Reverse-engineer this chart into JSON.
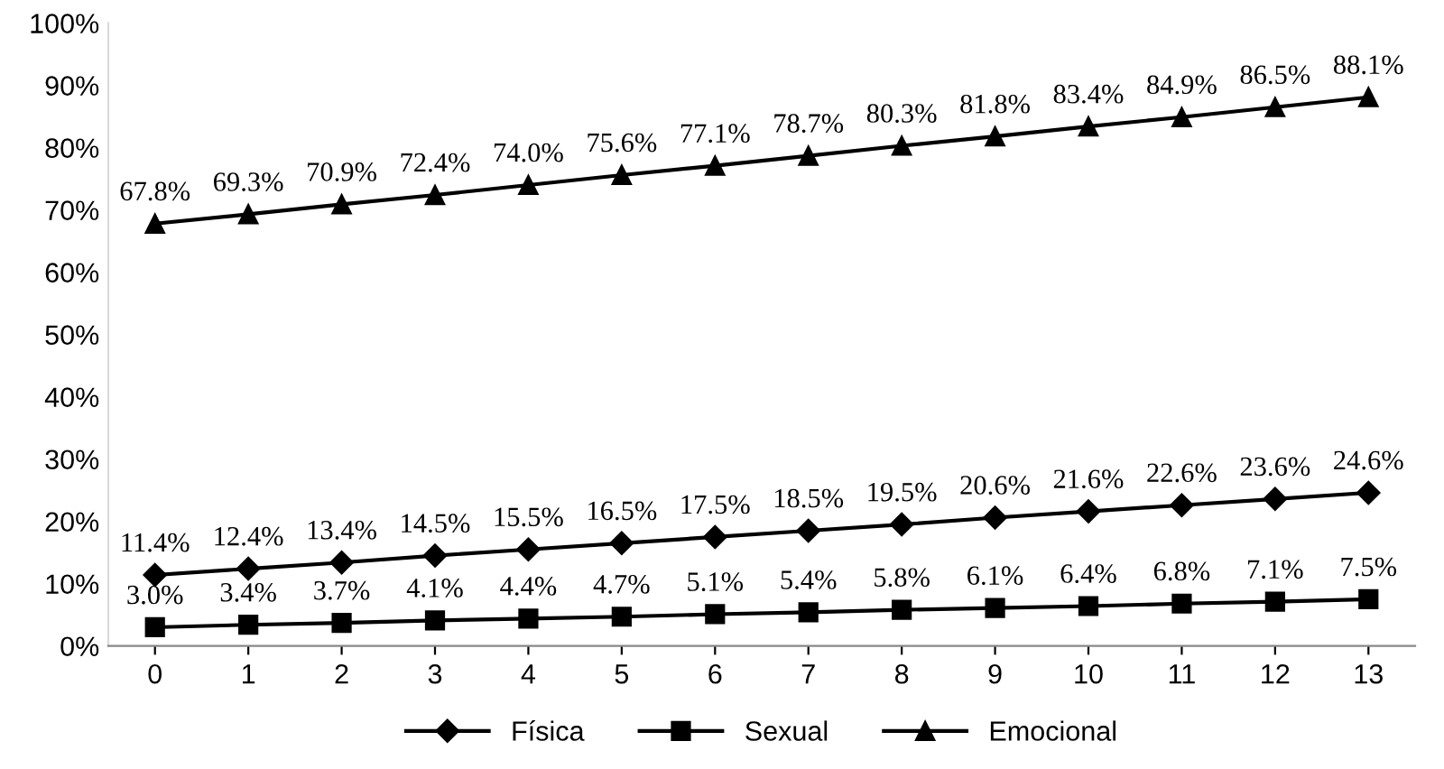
{
  "chart_data": {
    "type": "line",
    "categories": [
      "0",
      "1",
      "2",
      "3",
      "4",
      "5",
      "6",
      "7",
      "8",
      "9",
      "10",
      "11",
      "12",
      "13"
    ],
    "series": [
      {
        "name": "Física",
        "color": "#000000",
        "marker": "diamond",
        "values": [
          11.4,
          12.4,
          13.4,
          14.5,
          15.5,
          16.5,
          17.5,
          18.5,
          19.5,
          20.6,
          21.6,
          22.6,
          23.6,
          24.6
        ],
        "value_labels": [
          "11.4%",
          "12.4%",
          "13.4%",
          "14.5%",
          "15.5%",
          "16.5%",
          "17.5%",
          "18.5%",
          "19.5%",
          "20.6%",
          "21.6%",
          "22.6%",
          "23.6%",
          "24.6%"
        ]
      },
      {
        "name": "Sexual",
        "color": "#000000",
        "marker": "square",
        "values": [
          3.0,
          3.4,
          3.7,
          4.1,
          4.4,
          4.7,
          5.1,
          5.4,
          5.8,
          6.1,
          6.4,
          6.8,
          7.1,
          7.5
        ],
        "value_labels": [
          "3.0%",
          "3.4%",
          "3.7%",
          "4.1%",
          "4.4%",
          "4.7%",
          "5.1%",
          "5.4%",
          "5.8%",
          "6.1%",
          "6.4%",
          "6.8%",
          "7.1%",
          "7.5%"
        ]
      },
      {
        "name": "Emocional",
        "color": "#000000",
        "marker": "triangle",
        "values": [
          67.8,
          69.3,
          70.9,
          72.4,
          74.0,
          75.6,
          77.1,
          78.7,
          80.3,
          81.8,
          83.4,
          84.9,
          86.5,
          88.1
        ],
        "value_labels": [
          "67.8%",
          "69.3%",
          "70.9%",
          "72.4%",
          "74.0%",
          "75.6%",
          "77.1%",
          "78.7%",
          "80.3%",
          "81.8%",
          "83.4%",
          "84.9%",
          "86.5%",
          "88.1%"
        ]
      }
    ],
    "ylim": [
      0,
      100
    ],
    "yticks": [
      {
        "value": 0,
        "label": "0%"
      },
      {
        "value": 10,
        "label": "10%"
      },
      {
        "value": 20,
        "label": "20%"
      },
      {
        "value": 30,
        "label": "30%"
      },
      {
        "value": 40,
        "label": "40%"
      },
      {
        "value": 50,
        "label": "50%"
      },
      {
        "value": 60,
        "label": "60%"
      },
      {
        "value": 70,
        "label": "70%"
      },
      {
        "value": 80,
        "label": "80%"
      },
      {
        "value": 90,
        "label": "90%"
      },
      {
        "value": 100,
        "label": "100%"
      }
    ],
    "legend": "bottom",
    "line_style": "solid"
  }
}
